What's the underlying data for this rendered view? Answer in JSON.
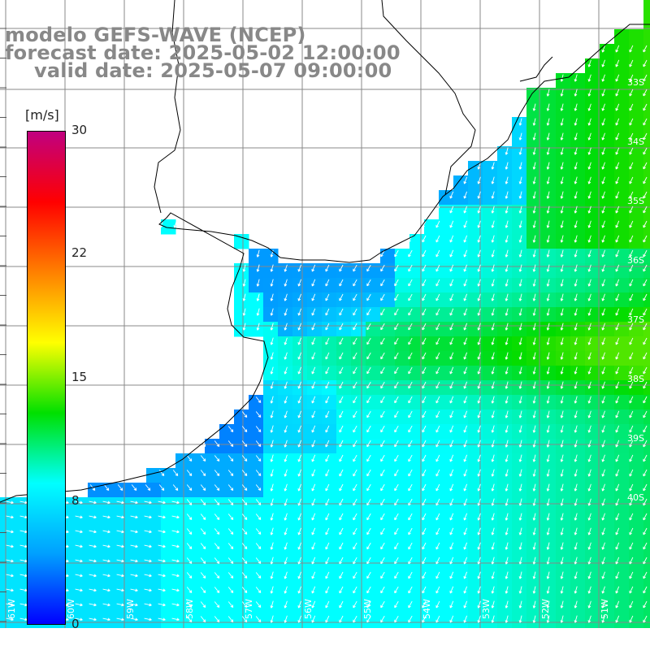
{
  "title": {
    "line1": "modelo GEFS-WAVE (NCEP)",
    "line2": "forecast date: 2025-05-02 12:00:00",
    "line3": "valid date: 2025-05-07 09:00:00"
  },
  "colorbar": {
    "unit": "[m/s]",
    "ticks": [
      "30",
      "22",
      "15",
      "8",
      "0"
    ],
    "stops": [
      "#0000ff",
      "#00a0ff",
      "#00ffff",
      "#00e000",
      "#ffff00",
      "#ff8000",
      "#ff0000",
      "#c00080"
    ]
  },
  "lon_labels": [
    "61W",
    "60W",
    "59W",
    "58W",
    "57W",
    "56W",
    "55W",
    "54W",
    "53W",
    "52W",
    "51W"
  ],
  "lat_labels": [
    "33S",
    "34S",
    "35S",
    "36S",
    "37S",
    "38S",
    "39S",
    "40S"
  ],
  "colors": {
    "land": "#ffffff",
    "grid": "#888888",
    "coast": "#000000",
    "arrows": "#ffffff"
  }
}
